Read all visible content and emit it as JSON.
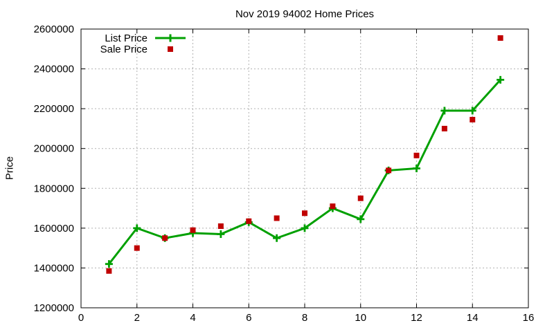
{
  "chart_data": {
    "type": "line",
    "title": "Nov 2019 94002 Home Prices",
    "xlabel": "",
    "ylabel": "Price",
    "xlim": [
      0,
      16
    ],
    "ylim": [
      1200000,
      2600000
    ],
    "xticks": [
      0,
      2,
      4,
      6,
      8,
      10,
      12,
      14,
      16
    ],
    "yticks": [
      1200000,
      1400000,
      1600000,
      1800000,
      2000000,
      2200000,
      2400000,
      2600000
    ],
    "grid": true,
    "legend_position": "top-left-inside",
    "x": [
      1,
      2,
      3,
      4,
      5,
      6,
      7,
      8,
      9,
      10,
      11,
      12,
      13,
      14,
      15
    ],
    "series": [
      {
        "name": "List Price",
        "type": "line",
        "marker": "plus",
        "color": "#00A000",
        "values": [
          1420000,
          1600000,
          1550000,
          1575000,
          1570000,
          1630000,
          1550000,
          1600000,
          1700000,
          1645000,
          1890000,
          1900000,
          2190000,
          2190000,
          2345000
        ]
      },
      {
        "name": "Sale Price",
        "type": "scatter",
        "marker": "square",
        "color": "#C00000",
        "values": [
          1385000,
          1500000,
          1550000,
          1590000,
          1610000,
          1635000,
          1650000,
          1675000,
          1710000,
          1750000,
          1890000,
          1965000,
          2100000,
          2145000,
          2555000
        ]
      }
    ],
    "colors": {
      "background": "#ffffff",
      "axis": "#000000",
      "grid": "#b0b0b0",
      "text": "#000000"
    }
  }
}
